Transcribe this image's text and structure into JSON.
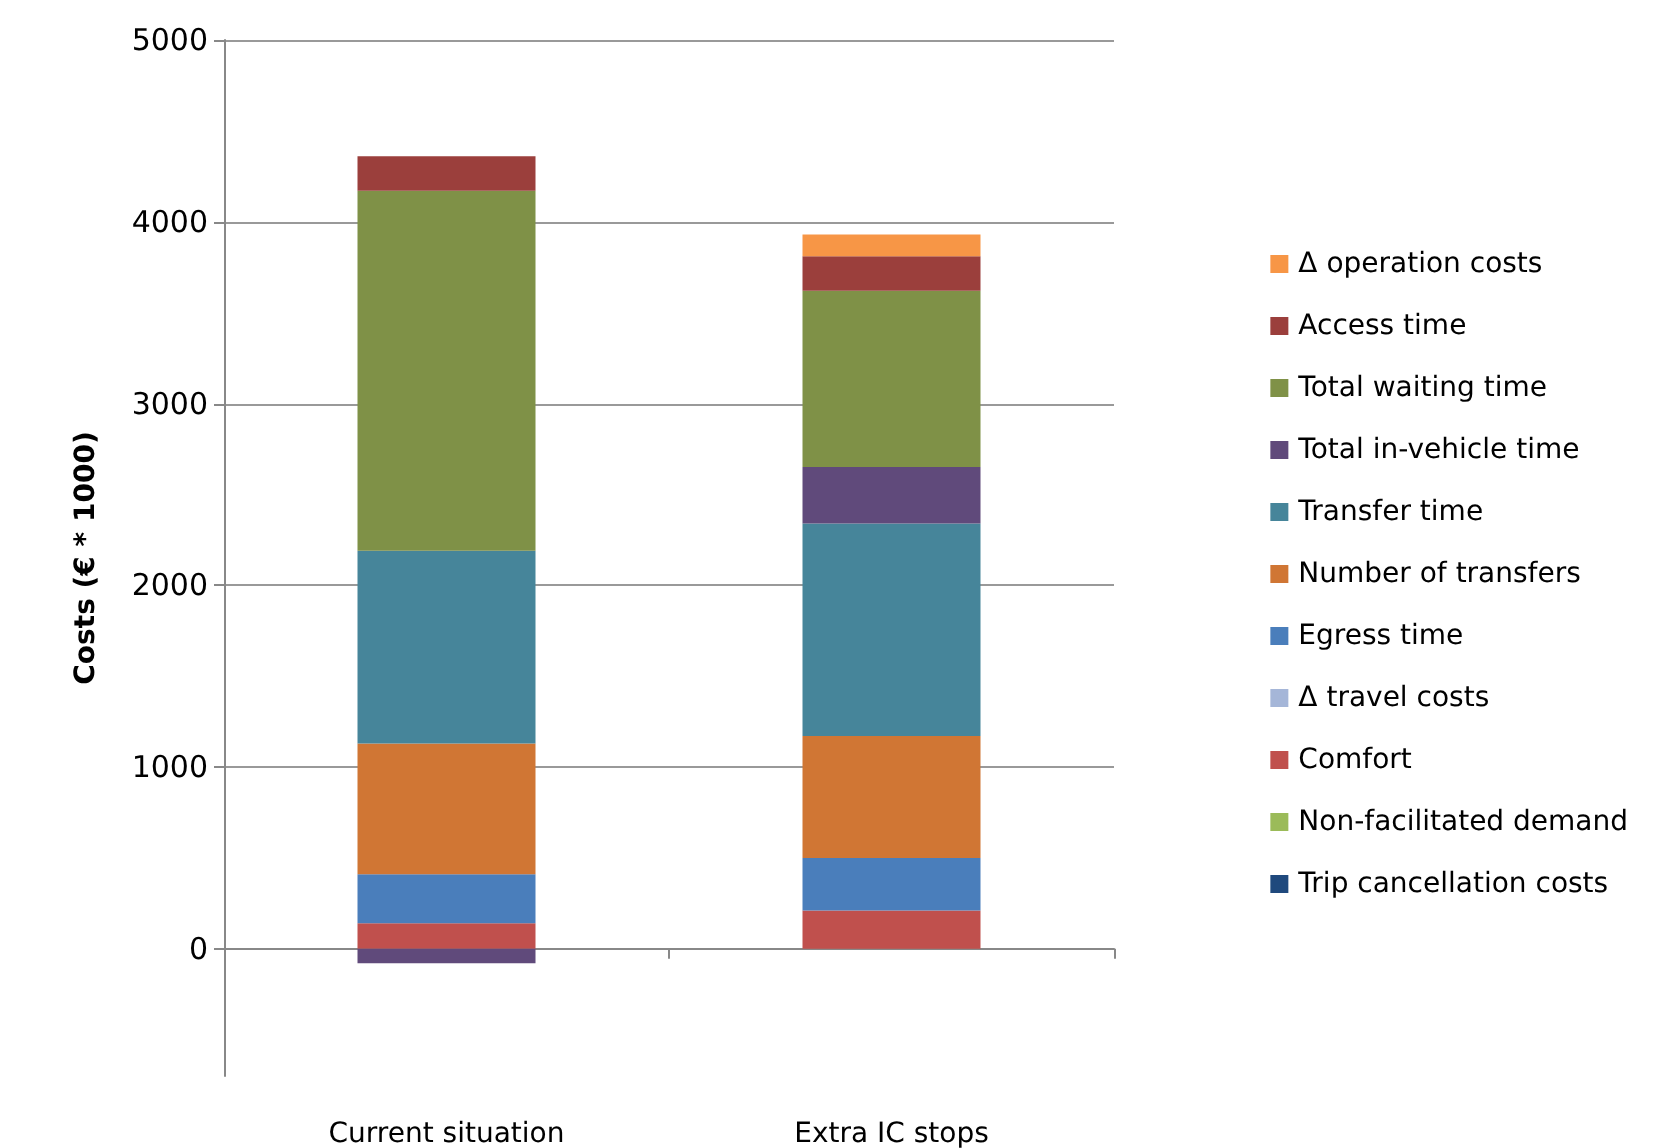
{
  "chart_data": {
    "type": "bar",
    "stacked": true,
    "ylabel": "Costs (€ * 1000)",
    "categories": [
      "Current situation",
      "Extra IC stops"
    ],
    "series": [
      {
        "name": "Trip cancellation costs",
        "color": "#1f497d",
        "values": [
          0,
          0
        ]
      },
      {
        "name": "Non-facilitated demand",
        "color": "#9bbb59",
        "values": [
          0,
          0
        ]
      },
      {
        "name": "Comfort",
        "color": "#c0504d",
        "values": [
          140,
          210
        ]
      },
      {
        "name": "Δ travel costs",
        "color": "#a5b6d8",
        "values": [
          0,
          0
        ]
      },
      {
        "name": "Egress time",
        "color": "#4a7ebb",
        "values": [
          270,
          290
        ]
      },
      {
        "name": "Number of transfers",
        "color": "#d07634",
        "values": [
          720,
          670
        ]
      },
      {
        "name": "Transfer time",
        "color": "#46859a",
        "values": [
          1060,
          1170
        ]
      },
      {
        "name": "Total in-vehicle time",
        "color": "#604a7b",
        "values": [
          -80,
          310
        ]
      },
      {
        "name": "Total waiting time",
        "color": "#7f9147",
        "values": [
          1980,
          970
        ]
      },
      {
        "name": "Access time",
        "color": "#9b3f3c",
        "values": [
          190,
          190
        ]
      },
      {
        "name": "Δ operation costs",
        "color": "#f79646",
        "values": [
          0,
          120
        ]
      }
    ],
    "ylim": [
      -700,
      5000
    ],
    "yticks": [
      0,
      1000,
      2000,
      3000,
      4000,
      5000
    ],
    "grid": "y",
    "legend": "right"
  }
}
